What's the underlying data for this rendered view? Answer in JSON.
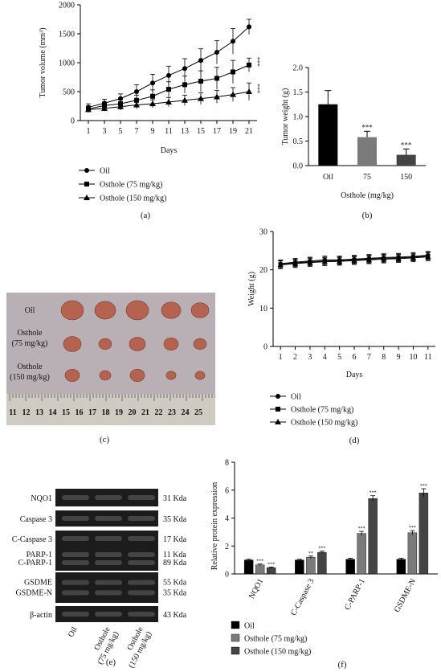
{
  "panel_labels": {
    "a": "(a)",
    "b": "(b)",
    "c": "(c)",
    "d": "(d)",
    "e": "(e)",
    "f": "(f)"
  },
  "colors": {
    "ink": "#111111",
    "bar_oil": "#000000",
    "bar_75": "#7a7a7a",
    "bar_150": "#444444",
    "photo_bg": "#b8b0b4",
    "tumor": "#b5634e"
  },
  "chart_data": [
    {
      "id": "a",
      "type": "line",
      "xlabel": "Days",
      "ylabel": "Tumor volume (mm³)",
      "x": [
        1,
        3,
        5,
        7,
        9,
        11,
        13,
        15,
        17,
        19,
        21
      ],
      "xlim": [
        0,
        22
      ],
      "ylim": [
        0,
        2000
      ],
      "xticks": [
        1,
        3,
        5,
        7,
        9,
        11,
        13,
        15,
        17,
        19,
        21
      ],
      "yticks": [
        0,
        500,
        1000,
        1500,
        2000
      ],
      "series": [
        {
          "name": "Oil",
          "marker": "circle",
          "values": [
            230,
            300,
            380,
            500,
            650,
            780,
            900,
            1040,
            1180,
            1370,
            1620
          ],
          "errors": [
            60,
            70,
            80,
            120,
            150,
            160,
            170,
            200,
            200,
            220,
            130
          ]
        },
        {
          "name": "Osthole (75 mg/kg)",
          "marker": "square",
          "values": [
            200,
            260,
            290,
            350,
            420,
            540,
            620,
            680,
            730,
            840,
            960
          ],
          "errors": [
            50,
            60,
            70,
            90,
            110,
            130,
            150,
            180,
            190,
            200,
            120
          ]
        },
        {
          "name": "Osthole (150 mg/kg)",
          "marker": "triangle",
          "values": [
            190,
            210,
            240,
            270,
            290,
            320,
            350,
            380,
            410,
            450,
            500
          ],
          "errors": [
            50,
            50,
            60,
            70,
            70,
            80,
            90,
            100,
            110,
            120,
            150
          ]
        }
      ],
      "annotations": [
        "***",
        "***"
      ]
    },
    {
      "id": "b",
      "type": "bar",
      "ylabel": "Tumor weight (g)",
      "xlabel": "Osthole (mg/kg)",
      "categories": [
        "Oil",
        "75",
        "150"
      ],
      "values": [
        1.25,
        0.58,
        0.22
      ],
      "errors": [
        0.28,
        0.12,
        0.12
      ],
      "ylim": [
        0,
        2.0
      ],
      "yticks": [
        0.0,
        0.5,
        1.0,
        1.5,
        2.0
      ],
      "yticklabels": [
        "0.0",
        "0.5",
        "1.0",
        "1.5",
        "2.0"
      ],
      "annotations": [
        "",
        "***",
        "***"
      ]
    },
    {
      "id": "d",
      "type": "line",
      "xlabel": "Days",
      "ylabel": "Weight (g)",
      "x": [
        1,
        2,
        3,
        4,
        5,
        6,
        7,
        8,
        9,
        10,
        11
      ],
      "xlim": [
        0.5,
        11.5
      ],
      "ylim": [
        0,
        30
      ],
      "xticks": [
        1,
        2,
        3,
        4,
        5,
        6,
        7,
        8,
        9,
        10,
        11
      ],
      "yticks": [
        0,
        10,
        20,
        30
      ],
      "series": [
        {
          "name": "Oil",
          "marker": "circle",
          "values": [
            21.6,
            22.0,
            22.3,
            22.6,
            22.6,
            22.8,
            23.0,
            23.2,
            23.3,
            23.5,
            23.8
          ],
          "errors": [
            1.0,
            1.0,
            1.0,
            1.0,
            1.0,
            1.0,
            1.0,
            1.0,
            1.0,
            1.0,
            1.0
          ]
        },
        {
          "name": "Osthole (75 mg/kg)",
          "marker": "square",
          "values": [
            21.4,
            21.8,
            22.1,
            22.3,
            22.4,
            22.6,
            22.8,
            23.0,
            23.1,
            23.3,
            23.6
          ],
          "errors": [
            1.0,
            1.0,
            1.0,
            1.0,
            1.0,
            1.0,
            1.0,
            1.0,
            1.0,
            1.0,
            1.0
          ]
        },
        {
          "name": "Osthole (150 mg/kg)",
          "marker": "triangle",
          "values": [
            21.3,
            21.6,
            21.9,
            22.1,
            22.2,
            22.4,
            22.6,
            22.8,
            22.9,
            23.1,
            23.4
          ],
          "errors": [
            1.0,
            1.0,
            1.0,
            1.0,
            1.0,
            1.0,
            1.0,
            1.0,
            1.0,
            1.0,
            1.0
          ]
        }
      ]
    },
    {
      "id": "f",
      "type": "bar",
      "ylabel": "Relative protein expression",
      "categories": [
        "NQO1",
        "C-Caspase 3",
        "C-PARP-1",
        "GSDME-N"
      ],
      "ylim": [
        0,
        8
      ],
      "yticks": [
        0,
        2,
        4,
        6,
        8
      ],
      "series": [
        {
          "name": "Oil",
          "values": [
            1.0,
            1.0,
            1.05,
            1.05
          ],
          "errors": [
            0.05,
            0.05,
            0.08,
            0.08
          ]
        },
        {
          "name": "Osthole (75 mg/kg)",
          "values": [
            0.65,
            1.2,
            2.9,
            2.95
          ],
          "errors": [
            0.06,
            0.08,
            0.15,
            0.15
          ]
        },
        {
          "name": "Osthole (150 mg/kg)",
          "values": [
            0.45,
            1.55,
            5.4,
            5.8
          ],
          "errors": [
            0.05,
            0.08,
            0.2,
            0.3
          ]
        }
      ],
      "annotations": [
        [
          "",
          "***",
          "***"
        ],
        [
          "",
          "**",
          "***"
        ],
        [
          "",
          "***",
          "***"
        ],
        [
          "",
          "***",
          "***"
        ]
      ]
    }
  ],
  "photo": {
    "row_labels": [
      {
        "l1": "Oil",
        "l2": ""
      },
      {
        "l1": "Osthole",
        "l2": "(75 mg/kg)"
      },
      {
        "l1": "Osthole",
        "l2": "(150 mg/kg)"
      }
    ],
    "ruler_numbers": [
      "11",
      "12",
      "13",
      "14",
      "15",
      "16",
      "17",
      "18",
      "19",
      "20",
      "21",
      "22",
      "23",
      "24",
      "25"
    ]
  },
  "blot": {
    "rows": [
      {
        "labels": [
          "NQO1"
        ],
        "kda": [
          "31 Kda"
        ]
      },
      {
        "labels": [
          "Caspase 3"
        ],
        "kda": [
          "35 Kda"
        ]
      },
      {
        "labels": [
          "C-Caspase 3"
        ],
        "kda": [
          "17 Kda"
        ]
      },
      {
        "labels": [
          "PARP-1",
          "C-PARP-1"
        ],
        "kda": [
          "11 Kda",
          "89 Kda"
        ]
      },
      {
        "labels": [
          "GSDME",
          "GSDME-N"
        ],
        "kda": [
          "55 Kda",
          "35 Kda"
        ]
      },
      {
        "labels": [
          "β-actin"
        ],
        "kda": [
          "43 Kda"
        ]
      }
    ],
    "lanes": [
      {
        "l1": "Oil",
        "l2": ""
      },
      {
        "l1": "Osthole",
        "l2": "(75 mg/kg)"
      },
      {
        "l1": "Osthole",
        "l2": "(150 mg/kg)"
      }
    ]
  }
}
